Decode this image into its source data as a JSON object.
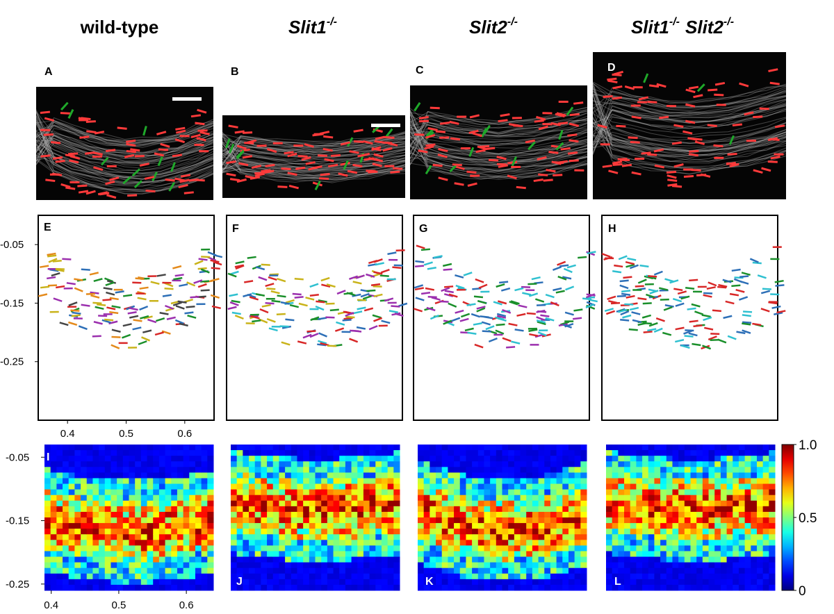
{
  "columns": [
    {
      "parts": [
        {
          "text": "wild-type"
        }
      ]
    },
    {
      "parts": [
        {
          "text": "Slit1",
          "superscript": "-/-"
        }
      ]
    },
    {
      "parts": [
        {
          "text": "Slit2",
          "superscript": "-/-"
        }
      ]
    },
    {
      "parts": [
        {
          "text": "Slit1",
          "superscript": "-/-"
        },
        {
          "text": "Slit2",
          "superscript": "-/-"
        }
      ]
    }
  ],
  "panel_labels": [
    "A",
    "B",
    "C",
    "D",
    "E",
    "F",
    "G",
    "H",
    "I",
    "J",
    "K",
    "L"
  ],
  "quiver_axes": {
    "xlim": [
      0.35,
      0.65
    ],
    "ylim": [
      -0.35,
      0.0
    ],
    "xticks": [
      0.4,
      0.5,
      0.6
    ],
    "yticks": [
      -0.05,
      -0.15,
      -0.25
    ]
  },
  "heatmap_axes": {
    "xlim": [
      0.39,
      0.64
    ],
    "ylim": [
      -0.26,
      -0.03
    ],
    "xticks": [
      0.4,
      0.5,
      0.6
    ],
    "yticks": [
      -0.05,
      -0.15,
      -0.25
    ]
  },
  "colorbar": {
    "lim": [
      0,
      1
    ],
    "ticks": [
      {
        "value": 1,
        "label": "1.0"
      },
      0.5,
      0
    ]
  }
}
